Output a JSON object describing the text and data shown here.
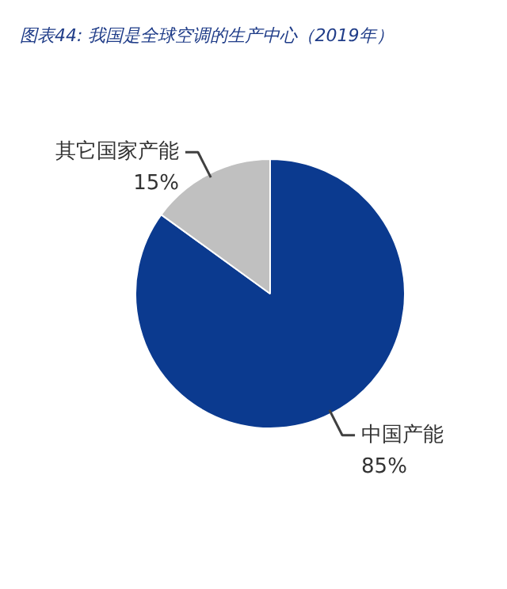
{
  "chart_data": {
    "type": "pie",
    "title": "图表44: 我国是全球空调的生产中心（2019年）",
    "categories": [
      "中国产能",
      "其它国家产能"
    ],
    "values": [
      85,
      15
    ],
    "colors": [
      "#0b3a8f",
      "#c0c0c0"
    ],
    "value_labels": [
      "85%",
      "15%"
    ]
  }
}
